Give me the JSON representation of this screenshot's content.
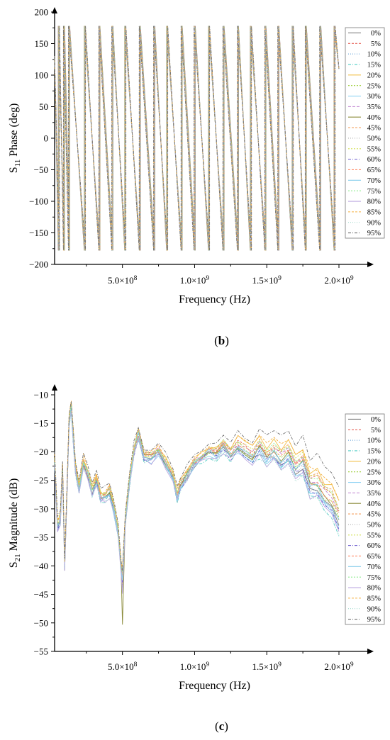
{
  "chart_data": [
    {
      "id": "b",
      "type": "line",
      "panel_label": "(b)",
      "panel_letter": "b",
      "xlabel": "Frequency (Hz)",
      "ylabel": "S11 Phase (deg)",
      "ylabel_main": "S",
      "ylabel_sub": "11",
      "ylabel_rest": " Phase (deg)",
      "xlim": [
        30000000,
        2000000000
      ],
      "ylim": [
        -200,
        200
      ],
      "x_ticks": [
        {
          "value": 500000000,
          "mantissa": "5.0×10",
          "exp": "8"
        },
        {
          "value": 1000000000,
          "mantissa": "1.0×10",
          "exp": "9"
        },
        {
          "value": 1500000000,
          "mantissa": "1.5×10",
          "exp": "9"
        },
        {
          "value": 2000000000,
          "mantissa": "2.0×10",
          "exp": "9"
        }
      ],
      "y_ticks": [
        200,
        150,
        100,
        50,
        0,
        -50,
        -100,
        -150,
        -200
      ],
      "y_tick_labels": [
        "200",
        "150",
        "100",
        "50",
        "0",
        "−50",
        "−100",
        "−150",
        "−200"
      ],
      "legend_position": "right",
      "series_names": [
        "0%",
        "5%",
        "10%",
        "15%",
        "20%",
        "25%",
        "30%",
        "35%",
        "40%",
        "45%",
        "50%",
        "55%",
        "60%",
        "65%",
        "70%",
        "75%",
        "80%",
        "85%",
        "90%",
        "95%"
      ],
      "phase_wraps_hz": [
        60000000,
        95000000,
        130000000,
        240000000,
        340000000,
        430000000,
        520000000,
        620000000,
        720000000,
        810000000,
        910000000,
        1000000000,
        1100000000,
        1200000000,
        1300000000,
        1390000000,
        1490000000,
        1580000000,
        1680000000,
        1770000000,
        1870000000,
        1970000000
      ],
      "phase_range_deg": [
        -178,
        178
      ]
    },
    {
      "id": "c",
      "type": "line",
      "panel_label": "(c)",
      "panel_letter": "c",
      "xlabel": "Frequency (Hz)",
      "ylabel": "S21 Magnitude (dB)",
      "ylabel_main": "S",
      "ylabel_sub": "21",
      "ylabel_rest": " Magnitude (dB)",
      "xlim": [
        30000000,
        2000000000
      ],
      "ylim": [
        -55,
        -10
      ],
      "x_ticks": [
        {
          "value": 500000000,
          "mantissa": "5.0×10",
          "exp": "8"
        },
        {
          "value": 1000000000,
          "mantissa": "1.0×10",
          "exp": "9"
        },
        {
          "value": 1500000000,
          "mantissa": "1.5×10",
          "exp": "9"
        },
        {
          "value": 2000000000,
          "mantissa": "2.0×10",
          "exp": "9"
        }
      ],
      "y_ticks": [
        -10,
        -15,
        -20,
        -25,
        -30,
        -35,
        -40,
        -45,
        -50,
        -55
      ],
      "y_tick_labels": [
        "−10",
        "−15",
        "−20",
        "−25",
        "−30",
        "−35",
        "−40",
        "−45",
        "−50",
        "−55"
      ],
      "legend_position": "right",
      "series_names": [
        "0%",
        "5%",
        "10%",
        "15%",
        "20%",
        "25%",
        "30%",
        "35%",
        "40%",
        "45%",
        "50%",
        "55%",
        "60%",
        "65%",
        "70%",
        "75%",
        "80%",
        "85%",
        "90%",
        "95%"
      ],
      "base_curve": {
        "x_hz": [
          30000000,
          50000000,
          70000000,
          85000000,
          100000000,
          115000000,
          130000000,
          145000000,
          160000000,
          175000000,
          200000000,
          230000000,
          260000000,
          290000000,
          320000000,
          350000000,
          380000000,
          410000000,
          440000000,
          470000000,
          490000000,
          500000000,
          520000000,
          550000000,
          580000000,
          610000000,
          650000000,
          700000000,
          750000000,
          800000000,
          850000000,
          880000000,
          900000000,
          950000000,
          1000000000,
          1050000000,
          1100000000,
          1150000000,
          1200000000,
          1250000000,
          1300000000,
          1350000000,
          1400000000,
          1450000000,
          1500000000,
          1550000000,
          1600000000,
          1650000000,
          1700000000,
          1750000000,
          1800000000,
          1850000000,
          1900000000,
          1950000000,
          2000000000
        ],
        "y_db": [
          -22,
          -33,
          -32,
          -23,
          -40,
          -28,
          -15,
          -12,
          -18,
          -23,
          -27,
          -22,
          -24,
          -27,
          -25,
          -28,
          -28,
          -27,
          -30,
          -34,
          -40,
          -42,
          -32,
          -25,
          -20,
          -17,
          -21,
          -21,
          -20,
          -22,
          -25,
          -28,
          -26,
          -24,
          -22,
          -21,
          -20,
          -20.5,
          -19,
          -20.5,
          -19,
          -20,
          -21,
          -19.5,
          -21,
          -20,
          -21.5,
          -20.5,
          -23,
          -22,
          -26,
          -26,
          -28,
          -29,
          -32
        ]
      },
      "series_offsets_db": [
        -0.5,
        0.5,
        0,
        -1,
        1.5,
        0.2,
        -0.8,
        0.6,
        0.1,
        1.2,
        -0.3,
        0.9,
        -0.6,
        0.4,
        -0.2,
        1.0,
        -1.2,
        2.0,
        -0.9,
        2.5
      ],
      "high_freq_spread_db": [
        -0.5,
        2,
        -1,
        -2,
        2.5,
        0,
        -1.5,
        1,
        0,
        1.5,
        -0.5,
        1.5,
        -1,
        0.5,
        -0.2,
        1.2,
        -1.8,
        2.8,
        -2.5,
        5.5
      ]
    }
  ],
  "legend_colors": [
    "#7f7f7f",
    "#e8635a",
    "#5a9bd5",
    "#4ecdc4",
    "#f2c14e",
    "#9acd32",
    "#8fd3f4",
    "#c084d0",
    "#8b8b3a",
    "#f4a261",
    "#b0b0b0",
    "#d4e157",
    "#6a5acd",
    "#ff8c69",
    "#87ceeb",
    "#90ee90",
    "#bca9e0",
    "#f5b041",
    "#a2d9ce",
    "#707070"
  ],
  "legend_dashes": [
    "",
    "3,2",
    "1,2",
    "4,2,1,2",
    "",
    "2,2",
    "",
    "4,2",
    "",
    "3,2",
    "1,2",
    "2,2",
    "4,2,1,2",
    "3,2",
    "",
    "2,2",
    "",
    "3,2",
    "1,2",
    "4,2,1,2"
  ]
}
